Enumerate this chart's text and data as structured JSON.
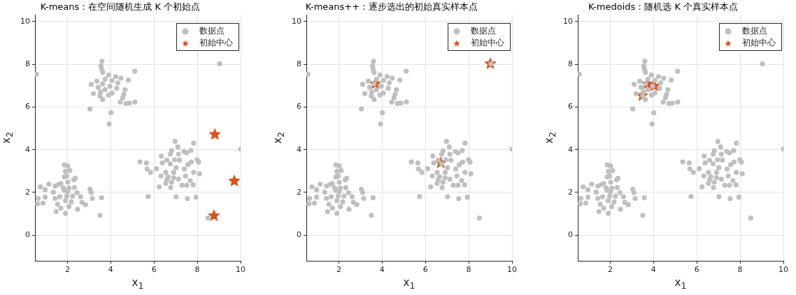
{
  "chart_data": [
    {
      "type": "scatter",
      "title": "K-means：在空间随机生成 K 个初始点",
      "xlabel": "x$_{1}$",
      "ylabel": "x$_{2}$",
      "xlim": [
        0.5,
        10
      ],
      "ylim": [
        -1.2,
        10.3
      ],
      "xticks": [
        2,
        4,
        6,
        8,
        10
      ],
      "yticks": [
        0,
        2,
        4,
        6,
        8,
        10
      ],
      "grid": true,
      "legend": "top right",
      "series": [
        {
          "name": "数据点",
          "color": "#bfbfbf",
          "marker": "circle",
          "x": [
            3.6,
            3.55,
            3.58,
            3.63,
            5.11,
            0.57,
            3.9,
            4.23,
            4.47,
            4.82,
            3.36,
            3.74,
            4.06,
            3.1,
            4.33,
            3.63,
            3.96,
            3.42,
            4.28,
            4.66,
            3.74,
            3.53,
            4.06,
            3.2,
            4.6,
            3.9,
            3.5,
            3.63,
            4.55,
            4.44,
            4.71,
            4.87,
            5.12,
            3.04,
            4.01,
            3.93,
            9.03,
            1.86,
            2.02,
            1.91,
            2.11,
            1.86,
            1.97,
            2.36,
            2.29,
            1.7,
            2.02,
            1.14,
            0.75,
            1.43,
            1.59,
            1.81,
            2.07,
            2.32,
            0.97,
            1.35,
            1.86,
            2.02,
            3.04,
            3.1,
            2.45,
            0.65,
            0.97,
            1.43,
            1.65,
            1.97,
            2.24,
            2.61,
            3.15,
            3.58,
            0.62,
            0.87,
            1.54,
            1.91,
            2.18,
            2.67,
            2.83,
            1.7,
            2.07,
            2.47,
            1.48,
            1.91,
            3.5,
            6.97,
            7.83,
            7.1,
            10.0,
            6.81,
            7.38,
            7.7,
            7.13,
            7.51,
            6.34,
            6.75,
            6.95,
            7.18,
            6.59,
            7.99,
            5.35,
            5.65,
            6.38,
            6.75,
            7.72,
            8.06,
            7.56,
            6.11,
            5.68,
            7.02,
            7.4,
            5.84,
            6.54,
            6.91,
            7.83,
            8.1,
            6.32,
            6.65,
            7.45,
            6.91,
            6.59,
            7.13,
            7.67,
            6.81,
            6.54,
            7.29,
            7.51,
            7.81,
            6.24,
            6.77,
            5.73,
            7.02,
            7.54,
            7.94,
            8.49
          ],
          "values": [
            8.14,
            7.92,
            7.78,
            7.62,
            7.67,
            7.53,
            7.49,
            7.42,
            7.35,
            7.26,
            7.21,
            7.3,
            7.24,
            7.06,
            7.13,
            7.08,
            6.97,
            6.92,
            6.87,
            6.81,
            6.81,
            6.7,
            6.65,
            6.62,
            6.59,
            6.56,
            6.52,
            6.35,
            6.43,
            6.23,
            6.16,
            6.18,
            6.23,
            5.91,
            5.73,
            5.2,
            8.02,
            3.29,
            3.24,
            2.99,
            3.02,
            2.73,
            2.77,
            2.66,
            2.59,
            2.42,
            2.48,
            2.39,
            2.26,
            2.3,
            2.37,
            2.21,
            2.21,
            2.23,
            2.13,
            2.01,
            2.1,
            2.05,
            2.15,
            1.99,
            1.99,
            1.72,
            1.78,
            1.72,
            1.8,
            1.83,
            1.83,
            1.8,
            1.72,
            1.75,
            1.47,
            1.5,
            1.45,
            1.61,
            1.56,
            1.54,
            1.43,
            1.26,
            1.34,
            1.21,
            1.1,
            1.02,
            0.93,
            4.39,
            4.31,
            4.13,
            4.03,
            3.95,
            3.92,
            3.96,
            3.79,
            3.85,
            3.7,
            3.79,
            3.53,
            3.51,
            3.51,
            3.53,
            3.43,
            3.38,
            3.38,
            3.34,
            3.42,
            3.42,
            3.3,
            3.11,
            3.1,
            3.16,
            3.1,
            2.94,
            2.94,
            2.94,
            2.94,
            2.88,
            2.77,
            2.73,
            2.77,
            2.69,
            2.59,
            2.62,
            2.56,
            2.48,
            2.42,
            2.34,
            2.34,
            2.36,
            2.26,
            2.23,
            1.81,
            1.8,
            1.71,
            1.78,
            0.8
          ]
        },
        {
          "name": "初始中心",
          "color": "#d95319",
          "marker": "star",
          "x": [
            8.81,
            9.71,
            8.77
          ],
          "values": [
            4.71,
            2.53,
            0.91
          ]
        }
      ]
    },
    {
      "type": "scatter",
      "title": "K-means++：逐步选出的初始真实样本点",
      "xlabel": "x$_{1}$",
      "ylabel": "x$_{2}$",
      "xlim": [
        0.5,
        10
      ],
      "ylim": [
        -1.2,
        10.3
      ],
      "xticks": [
        2,
        4,
        6,
        8,
        10
      ],
      "yticks": [
        0,
        2,
        4,
        6,
        8,
        10
      ],
      "grid": true,
      "legend": "top right",
      "series": [
        {
          "name": "数据点",
          "color": "#bfbfbf",
          "marker": "circle",
          "x": [
            3.6,
            3.55,
            3.58,
            3.63,
            5.11,
            0.57,
            3.9,
            4.23,
            4.47,
            4.82,
            3.36,
            3.74,
            4.06,
            3.1,
            4.33,
            3.63,
            3.96,
            3.42,
            4.28,
            4.66,
            3.74,
            3.53,
            4.06,
            3.2,
            4.6,
            3.9,
            3.5,
            3.63,
            4.55,
            4.44,
            4.71,
            4.87,
            5.12,
            3.04,
            4.01,
            3.93,
            9.03,
            1.86,
            2.02,
            1.91,
            2.11,
            1.86,
            1.97,
            2.36,
            2.29,
            1.7,
            2.02,
            1.14,
            0.75,
            1.43,
            1.59,
            1.81,
            2.07,
            2.32,
            0.97,
            1.35,
            1.86,
            2.02,
            3.04,
            3.1,
            2.45,
            0.65,
            0.97,
            1.43,
            1.65,
            1.97,
            2.24,
            2.61,
            3.15,
            3.58,
            0.62,
            0.87,
            1.54,
            1.91,
            2.18,
            2.67,
            2.83,
            1.7,
            2.07,
            2.47,
            1.48,
            1.91,
            3.5,
            6.97,
            7.83,
            7.1,
            10.0,
            6.81,
            7.38,
            7.7,
            7.13,
            7.51,
            6.34,
            6.75,
            6.95,
            7.18,
            6.59,
            7.99,
            5.35,
            5.65,
            6.38,
            6.75,
            7.72,
            8.06,
            7.56,
            6.11,
            5.68,
            7.02,
            7.4,
            5.84,
            6.54,
            6.91,
            7.83,
            8.1,
            6.32,
            6.65,
            7.45,
            6.91,
            6.59,
            7.13,
            7.67,
            6.81,
            6.54,
            7.29,
            7.51,
            7.81,
            6.24,
            6.77,
            5.73,
            7.02,
            7.54,
            7.94,
            8.49
          ],
          "values": [
            8.14,
            7.92,
            7.78,
            7.62,
            7.67,
            7.53,
            7.49,
            7.42,
            7.35,
            7.26,
            7.21,
            7.3,
            7.24,
            7.06,
            7.13,
            7.08,
            6.97,
            6.92,
            6.87,
            6.81,
            6.81,
            6.7,
            6.65,
            6.62,
            6.59,
            6.56,
            6.52,
            6.35,
            6.43,
            6.23,
            6.16,
            6.18,
            6.23,
            5.91,
            5.73,
            5.2,
            8.02,
            3.29,
            3.24,
            2.99,
            3.02,
            2.73,
            2.77,
            2.66,
            2.59,
            2.42,
            2.48,
            2.39,
            2.26,
            2.3,
            2.37,
            2.21,
            2.21,
            2.23,
            2.13,
            2.01,
            2.1,
            2.05,
            2.15,
            1.99,
            1.99,
            1.72,
            1.78,
            1.72,
            1.8,
            1.83,
            1.83,
            1.8,
            1.72,
            1.75,
            1.47,
            1.5,
            1.45,
            1.61,
            1.56,
            1.54,
            1.43,
            1.26,
            1.34,
            1.21,
            1.1,
            1.02,
            0.93,
            4.39,
            4.31,
            4.13,
            4.03,
            3.95,
            3.92,
            3.96,
            3.79,
            3.85,
            3.7,
            3.79,
            3.53,
            3.51,
            3.51,
            3.53,
            3.43,
            3.38,
            3.38,
            3.34,
            3.42,
            3.42,
            3.3,
            3.11,
            3.1,
            3.16,
            3.1,
            2.94,
            2.94,
            2.94,
            2.94,
            2.88,
            2.77,
            2.73,
            2.77,
            2.69,
            2.59,
            2.62,
            2.56,
            2.48,
            2.42,
            2.34,
            2.34,
            2.36,
            2.26,
            2.23,
            1.81,
            1.8,
            1.71,
            1.78,
            0.8
          ]
        },
        {
          "name": "初始中心",
          "color": "#d95319",
          "marker": "star",
          "x": [
            3.68,
            6.71,
            9.0
          ],
          "values": [
            7.08,
            3.38,
            8.02
          ]
        }
      ]
    },
    {
      "type": "scatter",
      "title": "K-medoids：随机选 K 个真实样本点",
      "xlabel": "x$_{1}$",
      "ylabel": "x$_{2}$",
      "xlim": [
        0.5,
        10
      ],
      "ylim": [
        -1.2,
        10.3
      ],
      "xticks": [
        2,
        4,
        6,
        8,
        10
      ],
      "yticks": [
        0,
        2,
        4,
        6,
        8,
        10
      ],
      "grid": true,
      "legend": "top right",
      "series": [
        {
          "name": "数据点",
          "color": "#bfbfbf",
          "marker": "circle",
          "x": [
            3.6,
            3.55,
            3.58,
            3.63,
            5.11,
            0.57,
            3.9,
            4.23,
            4.47,
            4.82,
            3.36,
            3.74,
            4.06,
            3.1,
            4.33,
            3.63,
            3.96,
            3.42,
            4.28,
            4.66,
            3.74,
            3.53,
            4.06,
            3.2,
            4.6,
            3.9,
            3.5,
            3.63,
            4.55,
            4.44,
            4.71,
            4.87,
            5.12,
            3.04,
            4.01,
            3.93,
            9.03,
            1.86,
            2.02,
            1.91,
            2.11,
            1.86,
            1.97,
            2.36,
            2.29,
            1.7,
            2.02,
            1.14,
            0.75,
            1.43,
            1.59,
            1.81,
            2.07,
            2.32,
            0.97,
            1.35,
            1.86,
            2.02,
            3.04,
            3.1,
            2.45,
            0.65,
            0.97,
            1.43,
            1.65,
            1.97,
            2.24,
            2.61,
            3.15,
            3.58,
            0.62,
            0.87,
            1.54,
            1.91,
            2.18,
            2.67,
            2.83,
            1.7,
            2.07,
            2.47,
            1.48,
            1.91,
            3.5,
            6.97,
            7.83,
            7.1,
            10.0,
            6.81,
            7.38,
            7.7,
            7.13,
            7.51,
            6.34,
            6.75,
            6.95,
            7.18,
            6.59,
            7.99,
            5.35,
            5.65,
            6.38,
            6.75,
            7.72,
            8.06,
            7.56,
            6.11,
            5.68,
            7.02,
            7.4,
            5.84,
            6.54,
            6.91,
            7.83,
            8.1,
            6.32,
            6.65,
            7.45,
            6.91,
            6.59,
            7.13,
            7.67,
            6.81,
            6.54,
            7.29,
            7.51,
            7.81,
            6.24,
            6.77,
            5.73,
            7.02,
            7.54,
            7.94,
            8.49
          ],
          "values": [
            8.14,
            7.92,
            7.78,
            7.62,
            7.67,
            7.53,
            7.49,
            7.42,
            7.35,
            7.26,
            7.21,
            7.3,
            7.24,
            7.06,
            7.13,
            7.08,
            6.97,
            6.92,
            6.87,
            6.81,
            6.81,
            6.7,
            6.65,
            6.62,
            6.59,
            6.56,
            6.52,
            6.35,
            6.43,
            6.23,
            6.16,
            6.18,
            6.23,
            5.91,
            5.73,
            5.2,
            8.02,
            3.29,
            3.24,
            2.99,
            3.02,
            2.73,
            2.77,
            2.66,
            2.59,
            2.42,
            2.48,
            2.39,
            2.26,
            2.3,
            2.37,
            2.21,
            2.21,
            2.23,
            2.13,
            2.01,
            2.1,
            2.05,
            2.15,
            1.99,
            1.99,
            1.72,
            1.78,
            1.72,
            1.8,
            1.83,
            1.83,
            1.8,
            1.72,
            1.75,
            1.47,
            1.5,
            1.45,
            1.61,
            1.56,
            1.54,
            1.43,
            1.26,
            1.34,
            1.21,
            1.1,
            1.02,
            0.93,
            4.39,
            4.31,
            4.13,
            4.03,
            3.95,
            3.92,
            3.96,
            3.79,
            3.85,
            3.7,
            3.79,
            3.53,
            3.51,
            3.51,
            3.53,
            3.43,
            3.38,
            3.38,
            3.34,
            3.42,
            3.42,
            3.3,
            3.11,
            3.1,
            3.16,
            3.1,
            2.94,
            2.94,
            2.94,
            2.94,
            2.88,
            2.77,
            2.73,
            2.77,
            2.69,
            2.59,
            2.62,
            2.56,
            2.48,
            2.42,
            2.34,
            2.34,
            2.36,
            2.26,
            2.23,
            1.81,
            1.8,
            1.71,
            1.78,
            0.8
          ]
        },
        {
          "name": "初始中心",
          "color": "#d95319",
          "marker": "star",
          "x": [
            3.48,
            3.71,
            4.03
          ],
          "values": [
            6.53,
            7.08,
            6.98
          ]
        }
      ]
    }
  ]
}
